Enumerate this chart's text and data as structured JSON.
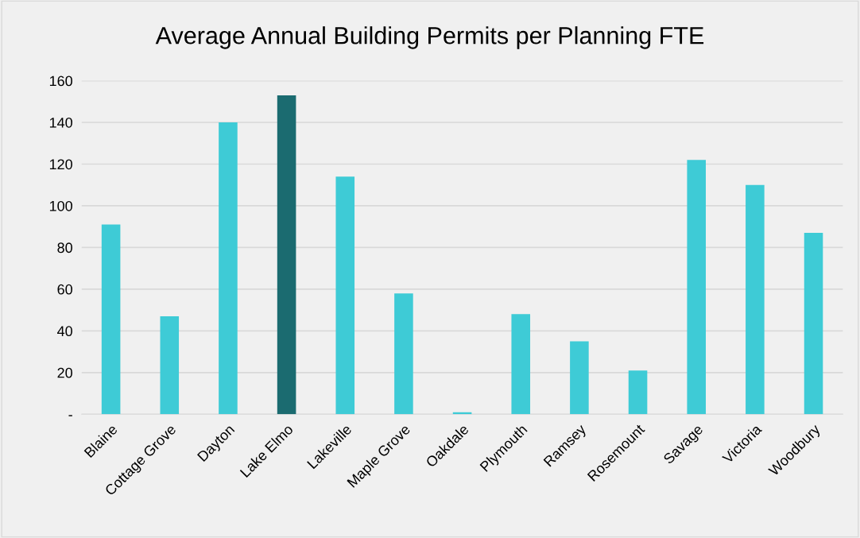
{
  "chart_data": {
    "type": "bar",
    "title": "Average Annual Building Permits per Planning FTE",
    "categories": [
      "Blaine",
      "Cottage Grove",
      "Dayton",
      "Lake Elmo",
      "Lakeville",
      "Maple Grove",
      "Oakdale",
      "Plymouth",
      "Ramsey",
      "Rosemount",
      "Savage",
      "Victoria",
      "Woodbury"
    ],
    "values": [
      91,
      47,
      140,
      153,
      114,
      58,
      1,
      48,
      35,
      21,
      122,
      110,
      87
    ],
    "colors": [
      "#3ecbd6",
      "#3ecbd6",
      "#3ecbd6",
      "#1b6b70",
      "#3ecbd6",
      "#3ecbd6",
      "#3ecbd6",
      "#3ecbd6",
      "#3ecbd6",
      "#3ecbd6",
      "#3ecbd6",
      "#3ecbd6",
      "#3ecbd6"
    ],
    "ylim": [
      0,
      160
    ],
    "yticks": [
      {
        "value": 0,
        "label": "-"
      },
      20,
      40,
      60,
      80,
      100,
      120,
      140,
      160
    ],
    "grid": "y",
    "legend": false
  }
}
